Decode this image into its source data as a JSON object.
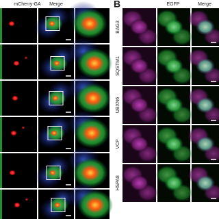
{
  "panel_a": {
    "headers": [
      "mCherry-GA",
      "Merge"
    ]
  },
  "panel_b": {
    "label": "B",
    "headers": [
      "EGFP",
      "Merge"
    ],
    "rows": [
      "BAG3",
      "SQSTM1",
      "UBXN6",
      "VCP",
      "HSPA8"
    ]
  }
}
